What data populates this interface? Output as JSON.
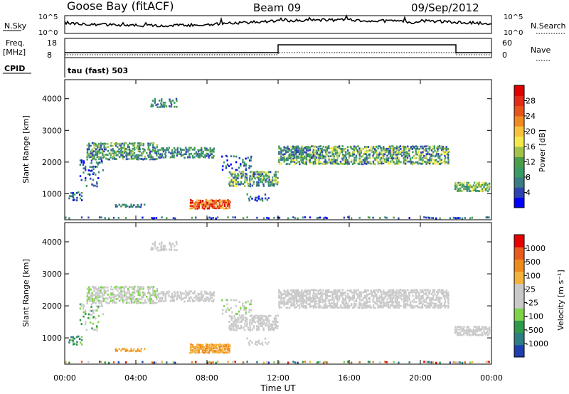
{
  "header": {
    "station": "Goose Bay (fitACF)",
    "beam": "Beam 09",
    "date": "09/Sep/2012"
  },
  "top_panels": {
    "nsky_label": "N.Sky",
    "nsky_ticks": [
      "10^5",
      "10^0"
    ],
    "nsearch_label": "N.Search",
    "nsearch_ticks": [
      "10^5",
      "10^0"
    ],
    "freq_label": "Freq.",
    "freq_unit": "[MHz]",
    "freq_ticks": [
      "18",
      "8"
    ],
    "nave_label": "Nave",
    "nave_ticks": [
      "60",
      "0"
    ],
    "cpid_label": "CPID",
    "cpid_text": "tau (fast) 503"
  },
  "chart_data": [
    {
      "type": "heatmap",
      "name": "power",
      "ylabel": "Slant Range [km]",
      "ytick_labels": [
        "1000",
        "2000",
        "3000",
        "4000"
      ],
      "ylim": [
        180,
        4600
      ],
      "colorbar": {
        "label": "Power [dB]",
        "ticks": [
          "28",
          "24",
          "20",
          "16",
          "12",
          "8",
          "4"
        ],
        "colors": [
          "#0000ff",
          "#2f43b4",
          "#3a7d85",
          "#3a9a64",
          "#4a9e4a",
          "#a3c24a",
          "#f3ea4a",
          "#f7c23a",
          "#f08a20",
          "#e8551a",
          "#e52b18",
          "#e00000"
        ]
      }
    },
    {
      "type": "heatmap",
      "name": "velocity",
      "ylabel": "Slant Range [km]",
      "ytick_labels": [
        "1000",
        "2000",
        "3000",
        "4000"
      ],
      "ylim": [
        180,
        4600
      ],
      "xlabel": "Time UT",
      "xtick_labels": [
        "00:00",
        "04:00",
        "08:00",
        "12:00",
        "16:00",
        "20:00",
        "00:00"
      ],
      "colorbar": {
        "label": "Velocity [m s⁻¹]",
        "ticks": [
          "1000",
          "500",
          "100",
          "25",
          "-25",
          "-100",
          "-500",
          "-1000"
        ],
        "colors": [
          "#1f3fb0",
          "#2c7d84",
          "#2f9a4a",
          "#7ed34a",
          "#c9c9c9",
          "#c9c9c9",
          "#f4b23a",
          "#ef8a1c",
          "#ea5a1c",
          "#e60000"
        ]
      }
    }
  ]
}
